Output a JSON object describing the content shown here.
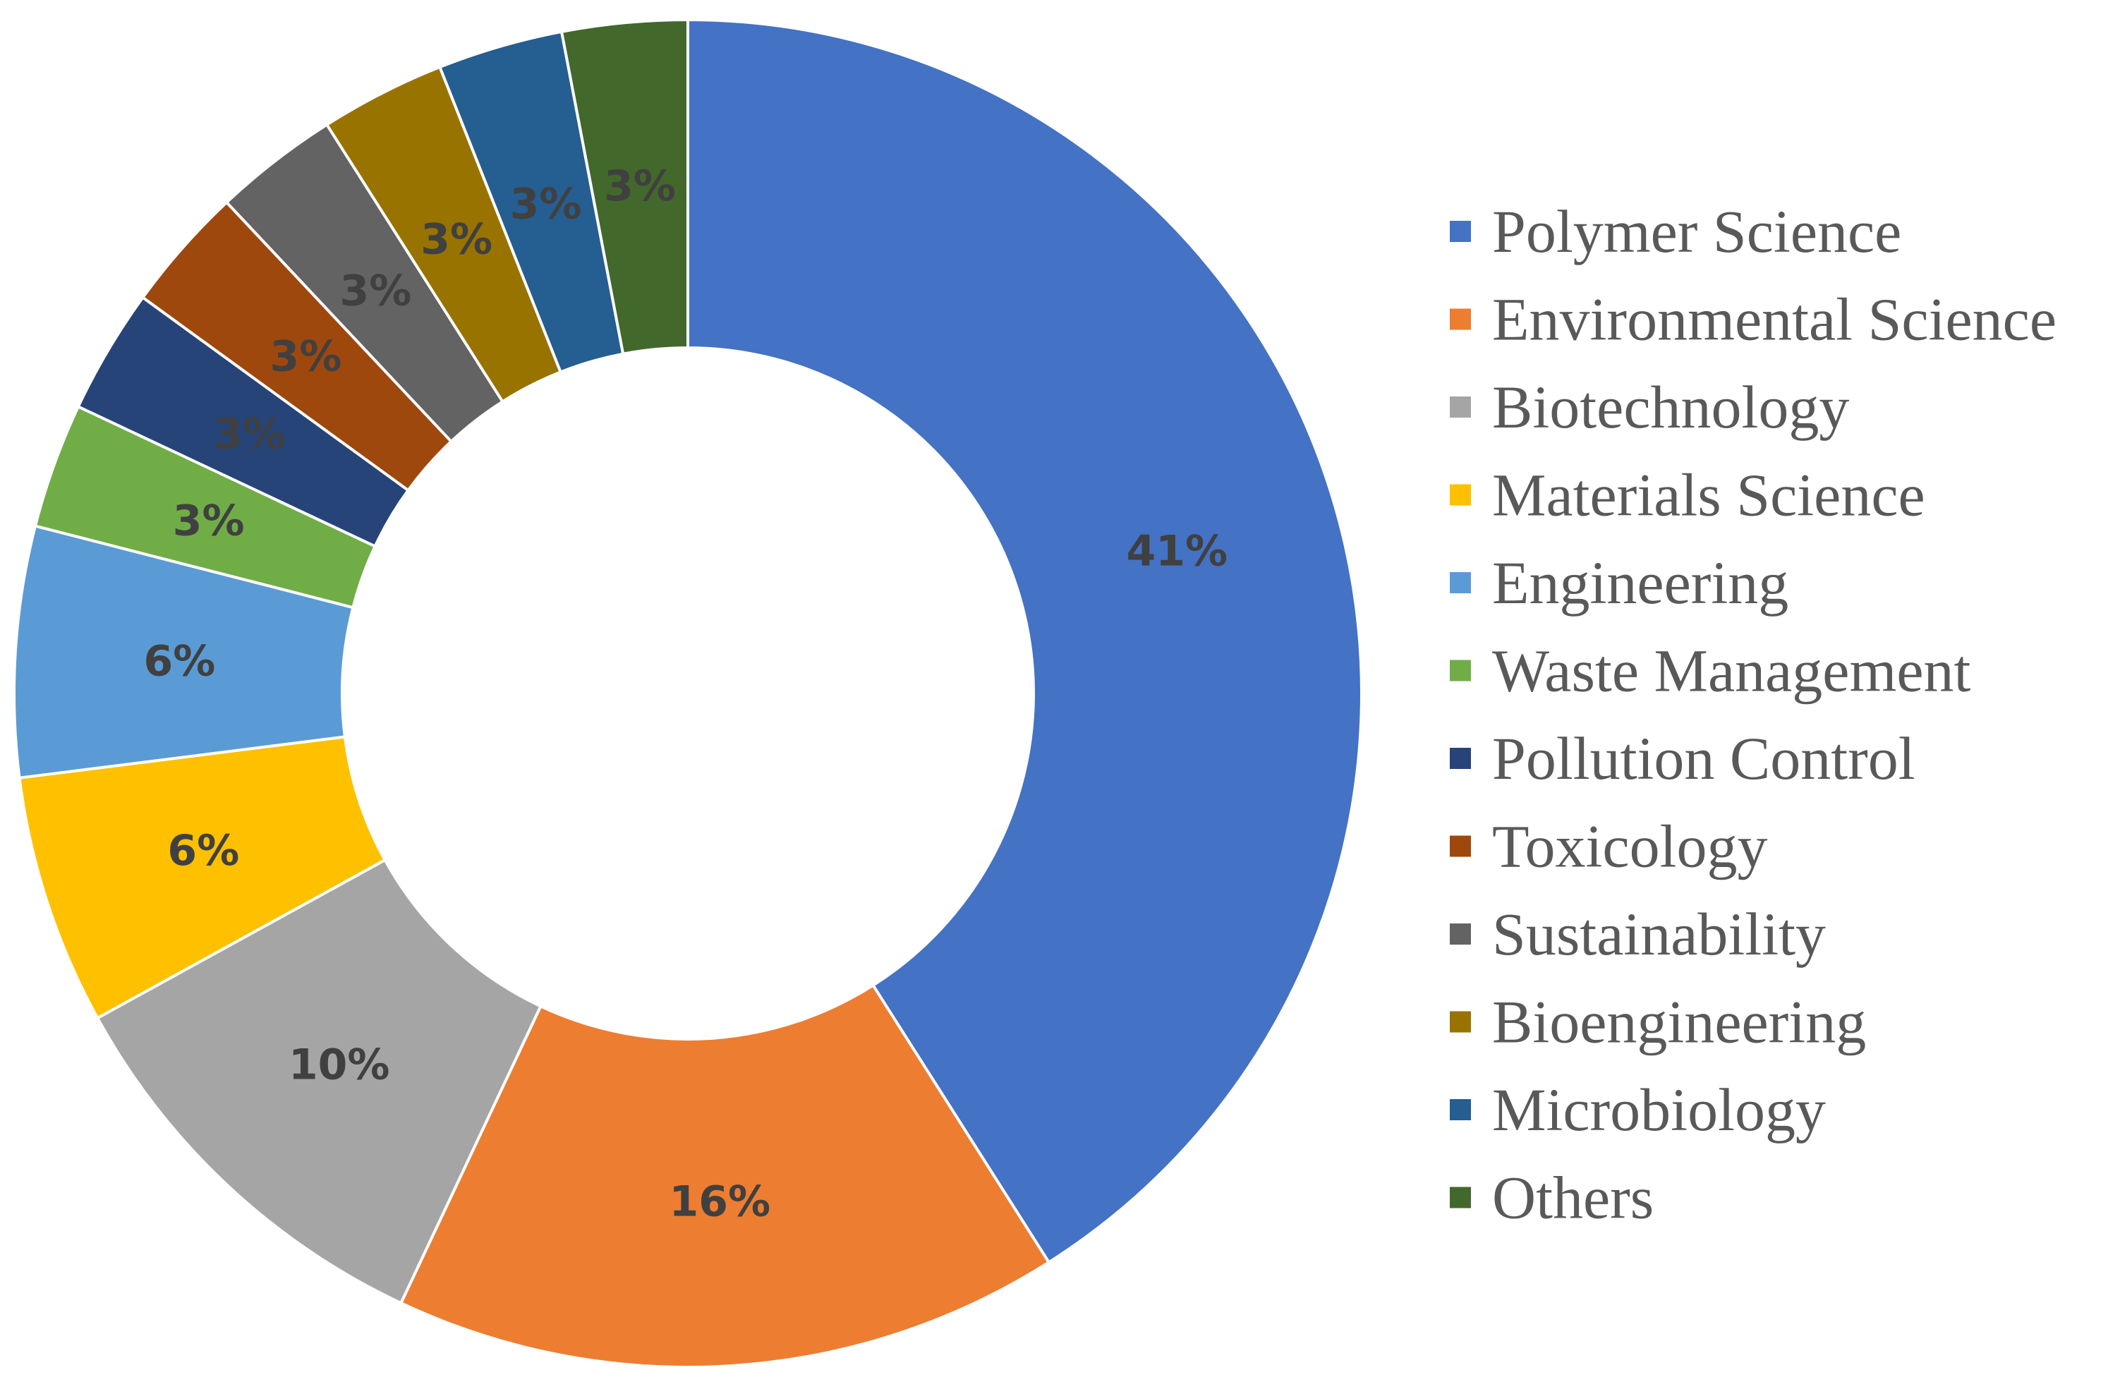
{
  "chart_data": {
    "type": "pie",
    "donut": true,
    "categories": [
      "Polymer Science",
      "Environmental Science",
      "Biotechnology",
      "Materials Science",
      "Engineering",
      "Waste Management",
      "Pollution Control",
      "Toxicology",
      "Sustainability",
      "Bioengineering",
      "Microbiology",
      "Others"
    ],
    "values": [
      41,
      16,
      10,
      6,
      6,
      3,
      3,
      3,
      3,
      3,
      3,
      3
    ],
    "labels": [
      "41%",
      "16%",
      "10%",
      "6%",
      "6%",
      "3%",
      "3%",
      "3%",
      "3%",
      "3%",
      "3%",
      "3%"
    ],
    "colors": [
      "#4472C4",
      "#ED7D31",
      "#A5A5A5",
      "#FFC000",
      "#5B9BD5",
      "#70AD47",
      "#264478",
      "#9E480E",
      "#636363",
      "#997300",
      "#255E91",
      "#43682B"
    ],
    "legend_position": "right",
    "title": ""
  }
}
